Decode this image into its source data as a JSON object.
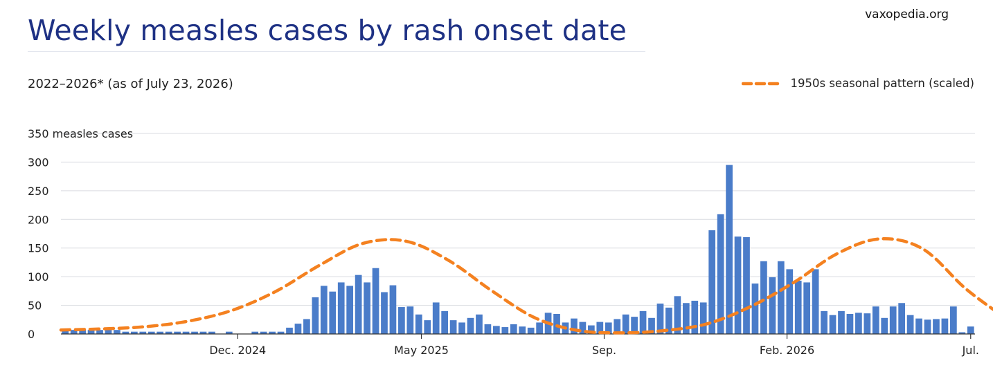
{
  "header": {
    "title": "Weekly measles cases by rash onset date",
    "subtitle": "2022–2026* (as of July 23, 2026)",
    "source": "vaxopedia.org"
  },
  "legend": {
    "label": "1950s seasonal pattern (scaled)"
  },
  "chart_data": {
    "type": "bar",
    "ylabel": "350 measles cases",
    "ylim": [
      0,
      350
    ],
    "yticks": [
      0,
      50,
      100,
      150,
      200,
      250,
      300,
      350
    ],
    "ytick_labels": [
      "0",
      "50",
      "100",
      "150",
      "200",
      "250",
      "300",
      "350 measles cases"
    ],
    "grid": true,
    "legend_position": "top-right",
    "x_labels": [
      {
        "label": "Dec. 2024",
        "index": 20.5
      },
      {
        "label": "May 2025",
        "index": 41.8
      },
      {
        "label": "Sep.",
        "index": 63
      },
      {
        "label": "Feb. 2026",
        "index": 84.2
      },
      {
        "label": "Jul.",
        "index": 105.5
      }
    ],
    "series": [
      {
        "type": "bar",
        "values": [
          7,
          7,
          7,
          7,
          7,
          7,
          7,
          4,
          4,
          4,
          4,
          4,
          4,
          4,
          4,
          4,
          4,
          4,
          0,
          4,
          0,
          0,
          4,
          4,
          4,
          4,
          11,
          18,
          26,
          64,
          84,
          74,
          90,
          84,
          103,
          90,
          115,
          73,
          85,
          47,
          48,
          34,
          24,
          55,
          40,
          24,
          20,
          28,
          34,
          17,
          14,
          12,
          17,
          13,
          11,
          20,
          37,
          35,
          20,
          27,
          21,
          15,
          21,
          20,
          26,
          34,
          30,
          40,
          28,
          53,
          46,
          66,
          54,
          58,
          55,
          181,
          209,
          295,
          170,
          169,
          88,
          127,
          99,
          127,
          113,
          93,
          90,
          113,
          40,
          33,
          40,
          35,
          37,
          36,
          48,
          28,
          48,
          54,
          33,
          27,
          25,
          26,
          27,
          48,
          3,
          13
        ],
        "color": "#4a7cc9"
      },
      {
        "name": "1950s seasonal pattern (scaled)",
        "type": "line",
        "style": "dashed",
        "color": "#f48120",
        "x": [
          0,
          5,
          10,
          15,
          20,
          25,
          30,
          35,
          40,
          45,
          50,
          55,
          60,
          65,
          70,
          75,
          80,
          85,
          90,
          95,
          100,
          105,
          110
        ],
        "values": [
          7,
          9,
          13,
          23,
          42,
          75,
          120,
          158,
          162,
          128,
          75,
          28,
          6,
          2,
          6,
          18,
          48,
          90,
          140,
          166,
          148,
          78,
          23
        ]
      }
    ]
  }
}
